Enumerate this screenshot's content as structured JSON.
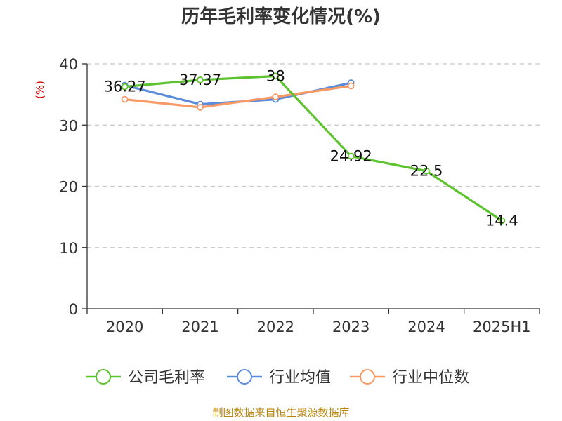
{
  "source": "制图数据来自恒生聚源数据库",
  "chart_data": {
    "type": "line",
    "title": "历年毛利率变化情况(%)",
    "unit_label": "(%)",
    "categories": [
      "2020",
      "2021",
      "2022",
      "2023",
      "2024",
      "2025H1"
    ],
    "ylim": [
      0,
      40
    ],
    "yticks": [
      0,
      10,
      20,
      30,
      40
    ],
    "grid": true,
    "legend_position": "bottom",
    "series": [
      {
        "name": "公司毛利率",
        "color": "#5cc22e",
        "values": [
          36.27,
          37.37,
          38,
          24.92,
          22.5,
          14.4
        ],
        "labels": [
          "36.27",
          "37.37",
          "38",
          "24.92",
          "22.5",
          "14.4"
        ]
      },
      {
        "name": "行业均值",
        "color": "#5b8bd9",
        "values": [
          36.5,
          33.4,
          34.2,
          36.9,
          null,
          null
        ],
        "labels": []
      },
      {
        "name": "行业中位数",
        "color": "#f79a66",
        "values": [
          34.2,
          32.9,
          34.6,
          36.4,
          null,
          null
        ],
        "labels": []
      }
    ]
  }
}
